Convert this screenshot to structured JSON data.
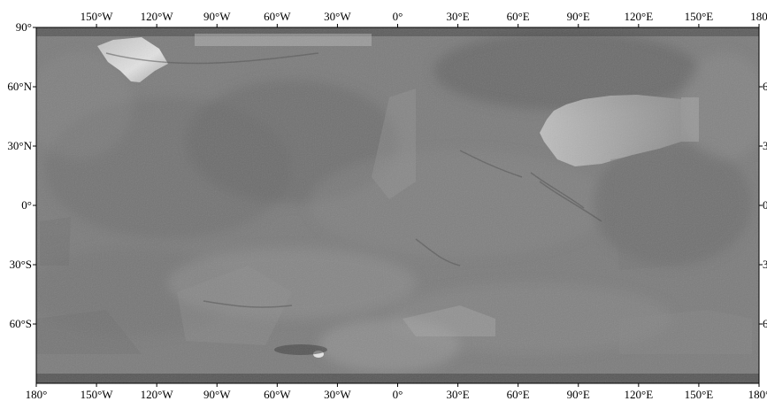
{
  "map": {
    "projection": "equirectangular",
    "lon_range": [
      -180,
      180
    ],
    "lat_range": [
      -90,
      90
    ],
    "colors": {
      "background": "#ffffff",
      "frame": "#000000",
      "tick_text": "#000000",
      "base_gray": "#7d7d7d"
    },
    "top_lon_ticks": [
      {
        "value": -150,
        "label": "150°W"
      },
      {
        "value": -120,
        "label": "120°W"
      },
      {
        "value": -90,
        "label": "90°W"
      },
      {
        "value": -60,
        "label": "60°W"
      },
      {
        "value": -30,
        "label": "30°W"
      },
      {
        "value": 0,
        "label": "0°"
      },
      {
        "value": 30,
        "label": "30°E"
      },
      {
        "value": 60,
        "label": "60°E"
      },
      {
        "value": 90,
        "label": "90°E"
      },
      {
        "value": 120,
        "label": "120°E"
      },
      {
        "value": 150,
        "label": "150°E"
      },
      {
        "value": 180,
        "label": "180"
      }
    ],
    "bottom_lon_ticks": [
      {
        "value": -180,
        "label": "180°"
      },
      {
        "value": -150,
        "label": "150°W"
      },
      {
        "value": -120,
        "label": "120°W"
      },
      {
        "value": -90,
        "label": "90°W"
      },
      {
        "value": -60,
        "label": "60°W"
      },
      {
        "value": -30,
        "label": "30°W"
      },
      {
        "value": 0,
        "label": "0°"
      },
      {
        "value": 30,
        "label": "30°E"
      },
      {
        "value": 60,
        "label": "60°E"
      },
      {
        "value": 90,
        "label": "90°E"
      },
      {
        "value": 120,
        "label": "120°E"
      },
      {
        "value": 150,
        "label": "150°E"
      },
      {
        "value": 180,
        "label": "180°"
      }
    ],
    "left_lat_ticks": [
      {
        "value": 90,
        "label": "90°"
      },
      {
        "value": 60,
        "label": "60°N"
      },
      {
        "value": 30,
        "label": "30°N"
      },
      {
        "value": 0,
        "label": "0°"
      },
      {
        "value": -30,
        "label": "30°S"
      },
      {
        "value": -60,
        "label": "60°S"
      }
    ],
    "right_lat_ticks": [
      {
        "value": 60,
        "label": "6"
      },
      {
        "value": 30,
        "label": "3"
      },
      {
        "value": 0,
        "label": "0"
      },
      {
        "value": -30,
        "label": "3"
      },
      {
        "value": -60,
        "label": "6"
      }
    ]
  }
}
